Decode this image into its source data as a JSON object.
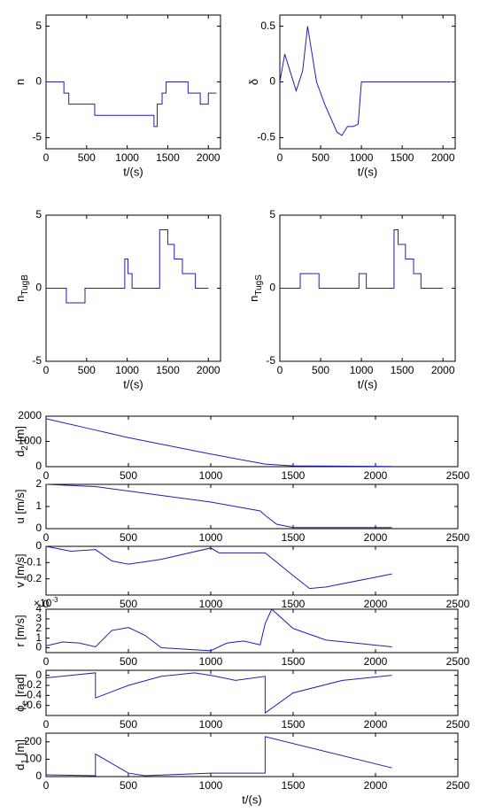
{
  "chart_data": [
    {
      "type": "line",
      "ylabel": "n",
      "xlabel": "t/(s)",
      "xlim": [
        0,
        2150
      ],
      "xticks": [
        0,
        500,
        1000,
        1500,
        2000
      ],
      "ylim": [
        -6,
        6
      ],
      "yticks": [
        -5,
        0,
        5
      ],
      "color": "#1f1fb4",
      "x": [
        0,
        220,
        220,
        280,
        280,
        600,
        600,
        1330,
        1330,
        1370,
        1370,
        1430,
        1430,
        1480,
        1480,
        1750,
        1750,
        1900,
        1900,
        2000,
        2000,
        2100
      ],
      "values": [
        0,
        0,
        -1,
        -1,
        -2,
        -2,
        -3,
        -3,
        -4,
        -4,
        -2,
        -2,
        -1,
        -1,
        0,
        0,
        -1,
        -1,
        -2,
        -2,
        -1,
        -1
      ]
    },
    {
      "type": "line",
      "ylabel": "δ",
      "xlabel": "t/(s)",
      "xlim": [
        0,
        2150
      ],
      "xticks": [
        0,
        500,
        1000,
        1500,
        2000
      ],
      "ylim": [
        -0.6,
        0.6
      ],
      "yticks": [
        -0.5,
        0,
        0.5
      ],
      "color": "#1f1fb4",
      "x": [
        0,
        60,
        200,
        280,
        340,
        450,
        550,
        700,
        760,
        830,
        900,
        960,
        1000,
        2100
      ],
      "values": [
        0,
        0.25,
        -0.08,
        0.1,
        0.5,
        0,
        -0.2,
        -0.45,
        -0.48,
        -0.4,
        -0.4,
        -0.38,
        0,
        0
      ]
    },
    {
      "type": "line",
      "ylabel": "n",
      "ylabel_sub": "TugB",
      "xlabel": "t/(s)",
      "xlim": [
        0,
        2150
      ],
      "xticks": [
        0,
        500,
        1000,
        1500,
        2000
      ],
      "ylim": [
        -5,
        5
      ],
      "yticks": [
        -5,
        0,
        5
      ],
      "color": "#1f1fb4",
      "x": [
        0,
        250,
        250,
        480,
        480,
        970,
        970,
        1010,
        1010,
        1060,
        1060,
        1400,
        1400,
        1500,
        1500,
        1580,
        1580,
        1680,
        1680,
        1840,
        1840,
        2000
      ],
      "values": [
        0,
        0,
        -1,
        -1,
        0,
        0,
        2,
        2,
        1,
        1,
        0,
        0,
        4,
        4,
        3,
        3,
        2,
        2,
        1,
        1,
        0,
        0
      ]
    },
    {
      "type": "line",
      "ylabel": "n",
      "ylabel_sub": "TugS",
      "xlabel": "t/(s)",
      "xlim": [
        0,
        2150
      ],
      "xticks": [
        0,
        500,
        1000,
        1500,
        2000
      ],
      "ylim": [
        -5,
        5
      ],
      "yticks": [
        -5,
        0,
        5
      ],
      "color": "#1f1fb4",
      "x": [
        0,
        250,
        250,
        480,
        480,
        970,
        970,
        1060,
        1060,
        1400,
        1400,
        1450,
        1450,
        1540,
        1540,
        1640,
        1640,
        1730,
        1730,
        2000
      ],
      "values": [
        0,
        0,
        1,
        1,
        0,
        0,
        1,
        1,
        0,
        0,
        4,
        4,
        3,
        3,
        2,
        2,
        1,
        1,
        0,
        0
      ]
    },
    {
      "type": "line",
      "ylabel": "d",
      "ylabel_sub": "2",
      "ylabel_unit": "[m]",
      "xlim": [
        0,
        2500
      ],
      "xticks": [
        0,
        500,
        1000,
        1500,
        2000,
        2500
      ],
      "ylim": [
        0,
        2000
      ],
      "yticks": [
        0,
        1000,
        2000
      ],
      "color": "#1f1fb4",
      "x": [
        0,
        300,
        500,
        1000,
        1330,
        1500,
        2100
      ],
      "values": [
        1900,
        1450,
        1150,
        500,
        100,
        30,
        10
      ]
    },
    {
      "type": "line",
      "ylabel": "u [m/s]",
      "xlim": [
        0,
        2500
      ],
      "xticks": [
        0,
        500,
        1000,
        1500,
        2000,
        2500
      ],
      "ylim": [
        0,
        2
      ],
      "yticks": [
        0,
        1,
        2
      ],
      "color": "#1f1fb4",
      "x": [
        0,
        300,
        500,
        1000,
        1300,
        1330,
        1400,
        1500,
        2100
      ],
      "values": [
        2,
        1.9,
        1.7,
        1.2,
        0.8,
        0.6,
        0.2,
        0.05,
        0.05
      ]
    },
    {
      "type": "line",
      "ylabel": "v [m/s]",
      "xlim": [
        0,
        2500
      ],
      "xticks": [
        0,
        500,
        1000,
        1500,
        2000,
        2500
      ],
      "ylim": [
        -0.3,
        0
      ],
      "yticks": [
        -0.2,
        -0.1,
        0
      ],
      "color": "#1f1fb4",
      "x": [
        0,
        150,
        300,
        400,
        500,
        700,
        1000,
        1050,
        1330,
        1500,
        1600,
        1700,
        2000,
        2100
      ],
      "values": [
        0,
        -0.03,
        -0.02,
        -0.09,
        -0.11,
        -0.08,
        -0.01,
        -0.04,
        -0.04,
        -0.18,
        -0.26,
        -0.25,
        -0.19,
        -0.17
      ]
    },
    {
      "type": "line",
      "ylabel": "r [m/s]",
      "y_multiplier": "×10",
      "y_multiplier_exp": "-3",
      "xlim": [
        0,
        2500
      ],
      "xticks": [
        0,
        500,
        1000,
        1500,
        2000,
        2500
      ],
      "ylim": [
        -0.5,
        4
      ],
      "yticks": [
        0,
        1,
        2,
        3,
        4
      ],
      "color": "#1f1fb4",
      "x": [
        0,
        100,
        200,
        300,
        400,
        500,
        600,
        700,
        1000,
        1100,
        1200,
        1300,
        1330,
        1370,
        1500,
        1700,
        2100
      ],
      "values": [
        0.2,
        0.6,
        0.5,
        0.1,
        1.8,
        2.1,
        1.3,
        0,
        -0.3,
        0.5,
        0.7,
        0.3,
        2.5,
        4,
        2,
        0.8,
        0.1
      ]
    },
    {
      "type": "line",
      "ylabel": "ϕ",
      "ylabel_sub": "e",
      "ylabel_unit": "[rad]",
      "xlim": [
        0,
        2500
      ],
      "xticks": [
        0,
        500,
        1000,
        1500,
        2000,
        2500
      ],
      "ylim": [
        -0.8,
        0.1
      ],
      "yticks": [
        -0.6,
        -0.4,
        -0.2,
        0
      ],
      "color": "#1f1fb4",
      "x": [
        0,
        300,
        300,
        500,
        700,
        900,
        1000,
        1150,
        1330,
        1330,
        1500,
        1800,
        2100
      ],
      "values": [
        -0.05,
        0.05,
        -0.45,
        -0.2,
        -0.02,
        0.05,
        0,
        -0.1,
        -0.02,
        -0.75,
        -0.35,
        -0.1,
        0
      ]
    },
    {
      "type": "line",
      "ylabel": "d",
      "ylabel_sub": "1",
      "ylabel_unit": "[m]",
      "xlabel": "t/(s)",
      "xlim": [
        0,
        2500
      ],
      "xticks": [
        0,
        500,
        1000,
        1500,
        2000,
        2500
      ],
      "ylim": [
        0,
        250
      ],
      "yticks": [
        0,
        100,
        200
      ],
      "color": "#1f1fb4",
      "x": [
        0,
        300,
        300,
        500,
        600,
        1000,
        1330,
        1330,
        2100
      ],
      "values": [
        10,
        5,
        130,
        20,
        5,
        20,
        20,
        230,
        50
      ]
    }
  ]
}
